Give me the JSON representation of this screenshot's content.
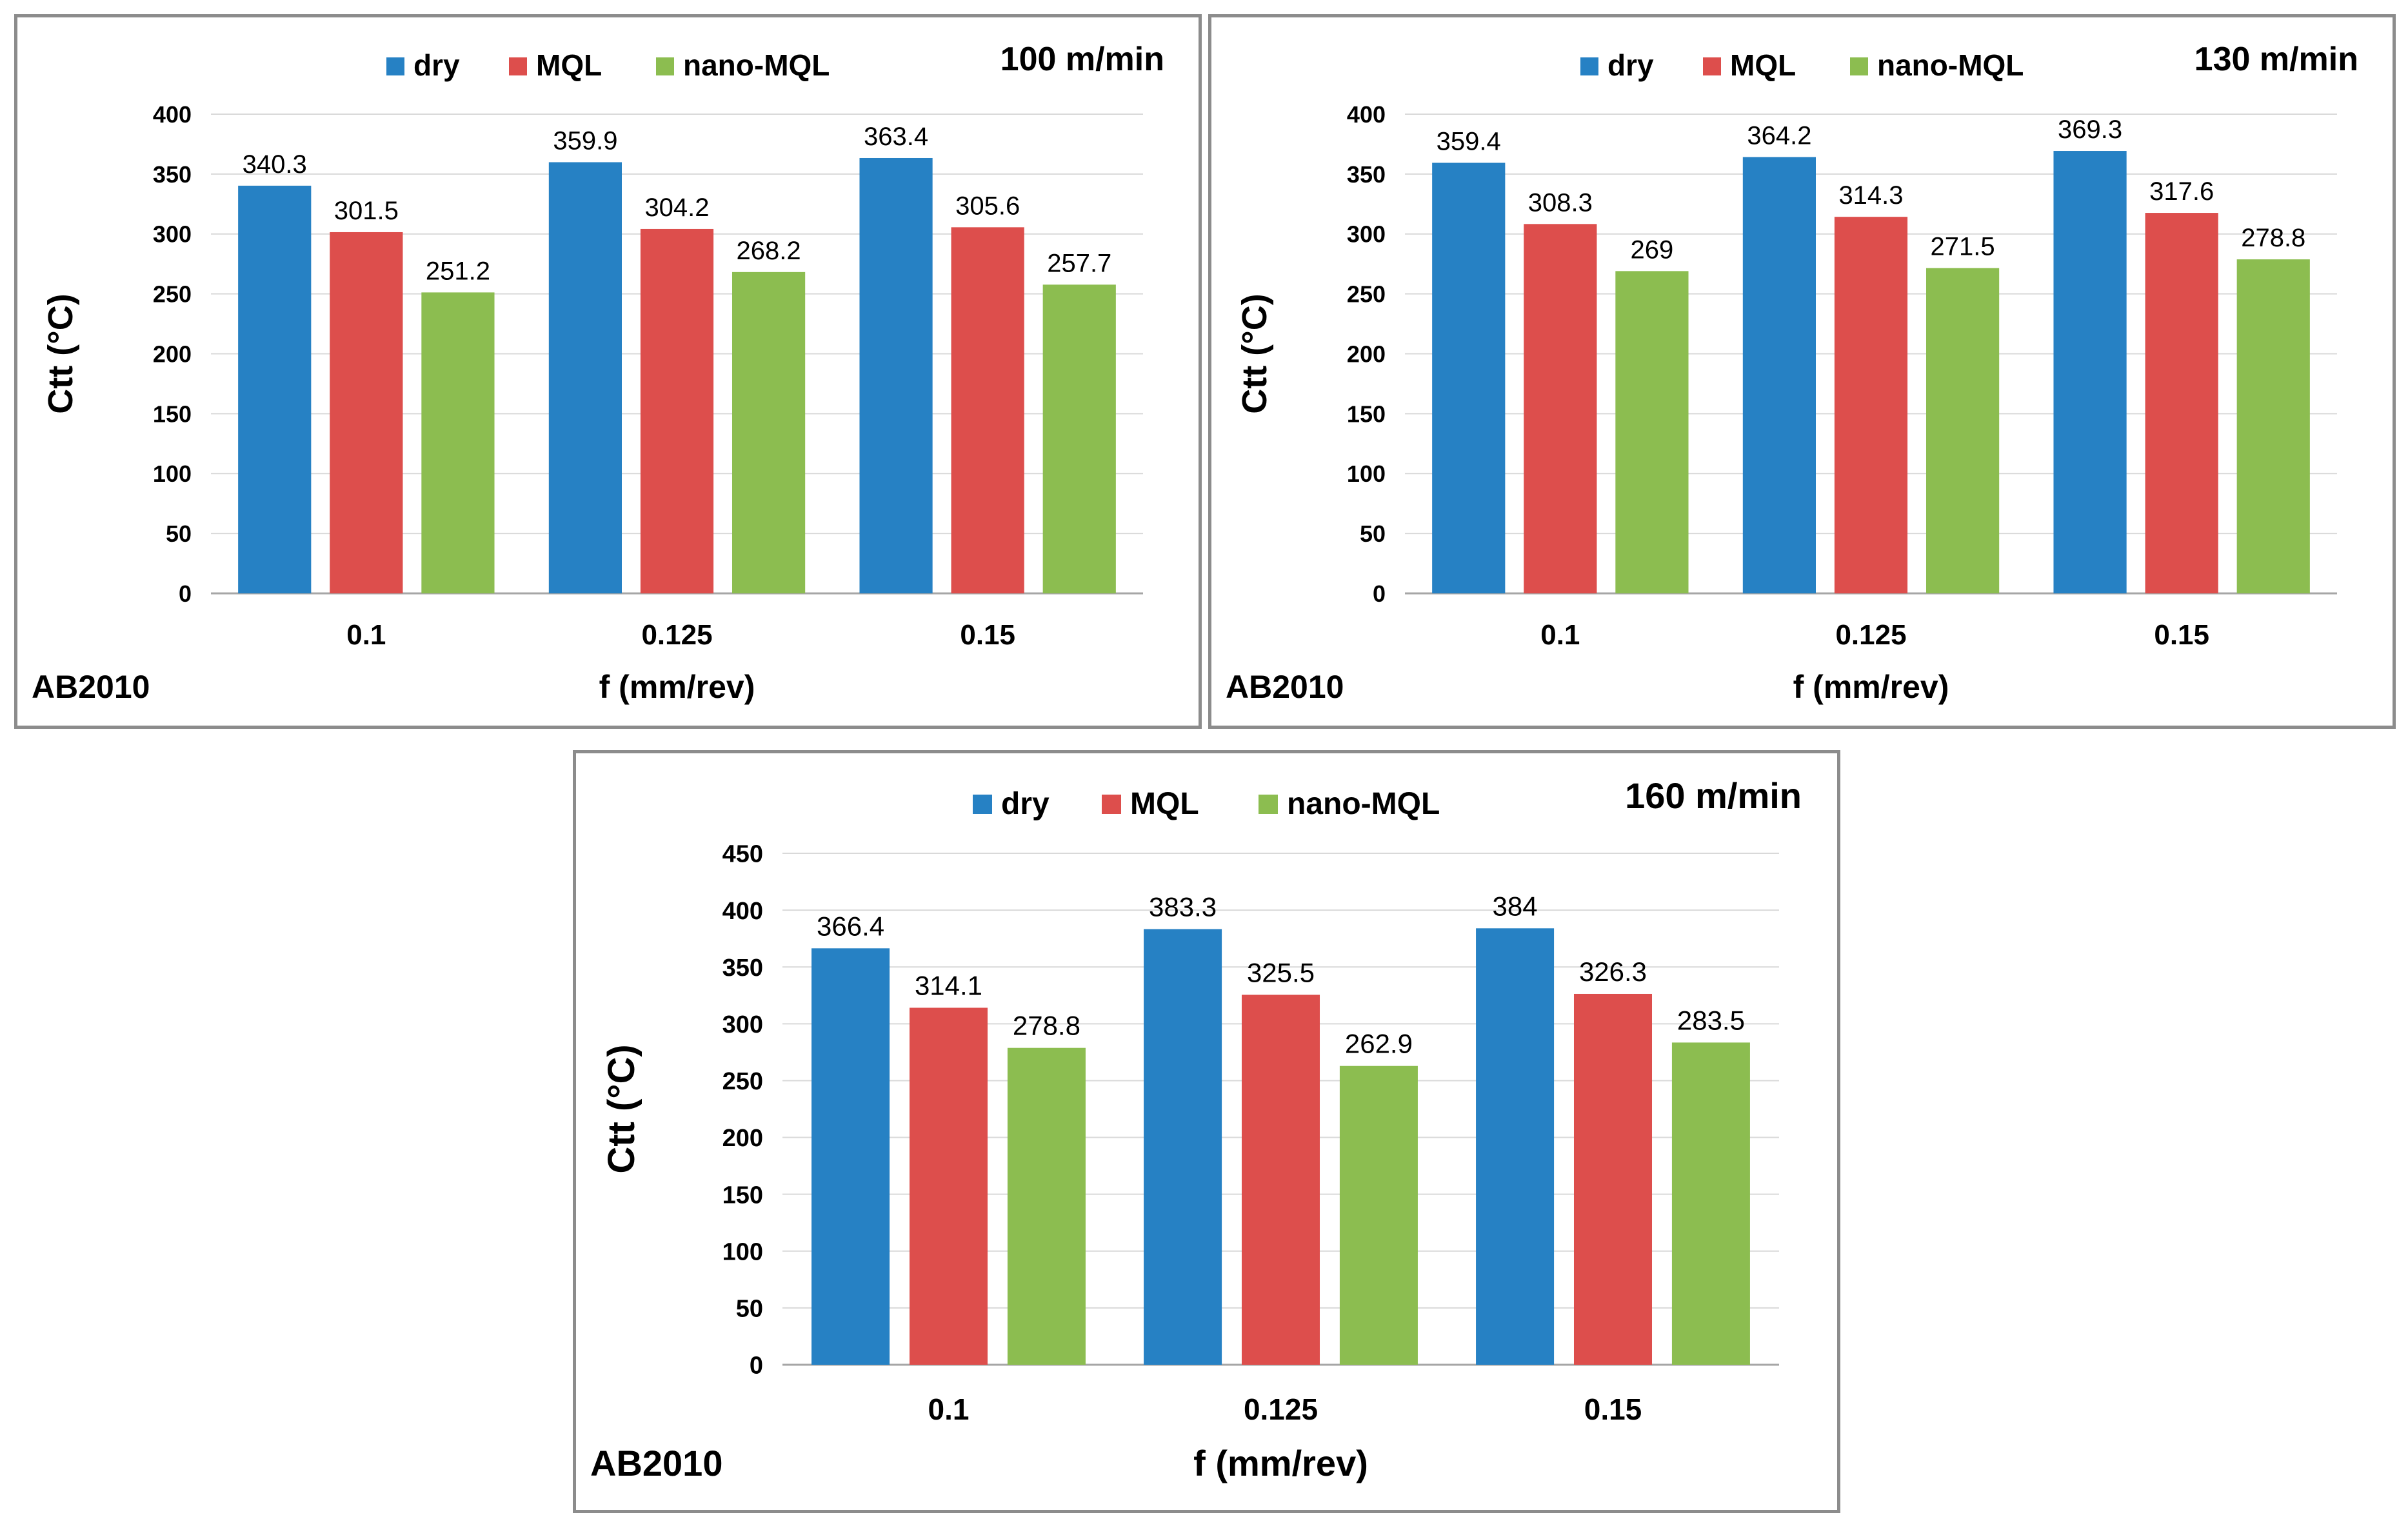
{
  "chart_data": [
    {
      "type": "bar",
      "title": "100 m/min",
      "corner_label": "AB2010",
      "xlabel": "f (mm/rev)",
      "ylabel": "Ctt (°C)",
      "categories": [
        "0.1",
        "0.125",
        "0.15"
      ],
      "ylim": [
        0,
        400
      ],
      "yticks": [
        0,
        50,
        100,
        150,
        200,
        250,
        300,
        350,
        400
      ],
      "grid": true,
      "legend": "top",
      "series": [
        {
          "name": "dry",
          "color": "#2681C4",
          "values": [
            340.3,
            359.9,
            363.4
          ]
        },
        {
          "name": "MQL",
          "color": "#DD4E4C",
          "values": [
            301.5,
            304.2,
            305.6
          ]
        },
        {
          "name": "nano-MQL",
          "color": "#8CBD50",
          "values": [
            251.2,
            268.2,
            257.7
          ]
        }
      ]
    },
    {
      "type": "bar",
      "title": "130 m/min",
      "corner_label": "AB2010",
      "xlabel": "f (mm/rev)",
      "ylabel": "Ctt (°C)",
      "categories": [
        "0.1",
        "0.125",
        "0.15"
      ],
      "ylim": [
        0,
        400
      ],
      "yticks": [
        0,
        50,
        100,
        150,
        200,
        250,
        300,
        350,
        400
      ],
      "grid": true,
      "legend": "top",
      "series": [
        {
          "name": "dry",
          "color": "#2681C4",
          "values": [
            359.4,
            364.2,
            369.3
          ]
        },
        {
          "name": "MQL",
          "color": "#DD4E4C",
          "values": [
            308.3,
            314.3,
            317.6
          ]
        },
        {
          "name": "nano-MQL",
          "color": "#8CBD50",
          "values": [
            269,
            271.5,
            278.8
          ]
        }
      ]
    },
    {
      "type": "bar",
      "title": "160 m/min",
      "corner_label": "AB2010",
      "xlabel": "f (mm/rev)",
      "ylabel": "Ctt (°C)",
      "categories": [
        "0.1",
        "0.125",
        "0.15"
      ],
      "ylim": [
        0,
        450
      ],
      "yticks": [
        0,
        50,
        100,
        150,
        200,
        250,
        300,
        350,
        400,
        450
      ],
      "grid": true,
      "legend": "top",
      "series": [
        {
          "name": "dry",
          "color": "#2681C4",
          "values": [
            366.4,
            383.3,
            384
          ]
        },
        {
          "name": "MQL",
          "color": "#DD4E4C",
          "values": [
            314.1,
            325.5,
            326.3
          ]
        },
        {
          "name": "nano-MQL",
          "color": "#8CBD50",
          "values": [
            278.8,
            262.9,
            283.5
          ]
        }
      ]
    }
  ]
}
